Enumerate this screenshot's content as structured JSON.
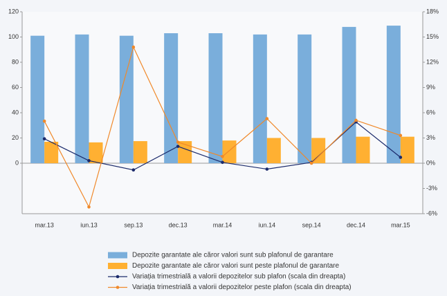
{
  "chart_data": {
    "type": "bar",
    "categories": [
      "mar.13",
      "iun.13",
      "sep.13",
      "dec.13",
      "mar.14",
      "iun.14",
      "sep.14",
      "dec.14",
      "mar.15"
    ],
    "series": [
      {
        "name": "Depozite garantate ale căror valori sunt sub plafonul de garantare",
        "type": "bar",
        "color": "#7aaedb",
        "values": [
          101,
          102,
          101,
          103,
          103,
          102,
          102,
          108,
          109
        ]
      },
      {
        "name": "Depozite garantate ale căror valori sunt peste plafonul de garantare",
        "type": "bar",
        "color": "#ffb032",
        "values": [
          17,
          16.5,
          17.5,
          17.5,
          18,
          20,
          20,
          21,
          21
        ]
      },
      {
        "name": "Variația trimestrială a valorii depozitelor sub plafon (scala din dreapta)",
        "type": "line",
        "axis": "y2",
        "color": "#1b2a6b",
        "values": [
          2.9,
          0.3,
          -0.8,
          2.0,
          0.1,
          -0.7,
          0.1,
          4.9,
          0.7
        ]
      },
      {
        "name": "Variația trimestrială a valorii depozitelor peste plafon (scala din dreapta)",
        "type": "line",
        "axis": "y2",
        "color": "#f0892a",
        "values": [
          5.0,
          -5.2,
          13.8,
          2.5,
          0.8,
          5.3,
          0.0,
          5.1,
          3.3
        ]
      }
    ],
    "ylim": [
      -40,
      120
    ],
    "yticks": [
      0,
      20,
      40,
      60,
      80,
      100,
      120
    ],
    "y2lim": [
      -6,
      18
    ],
    "y2ticks": [
      {
        "value": -6,
        "label": "-6%"
      },
      {
        "value": -3,
        "label": "-3%"
      },
      {
        "value": 0,
        "label": "0%"
      },
      {
        "value": 3,
        "label": "3%"
      },
      {
        "value": 6,
        "label": "6%"
      },
      {
        "value": 9,
        "label": "9%"
      },
      {
        "value": 12,
        "label": "12%"
      },
      {
        "value": 15,
        "label": "15%"
      },
      {
        "value": 18,
        "label": "18%"
      }
    ]
  }
}
